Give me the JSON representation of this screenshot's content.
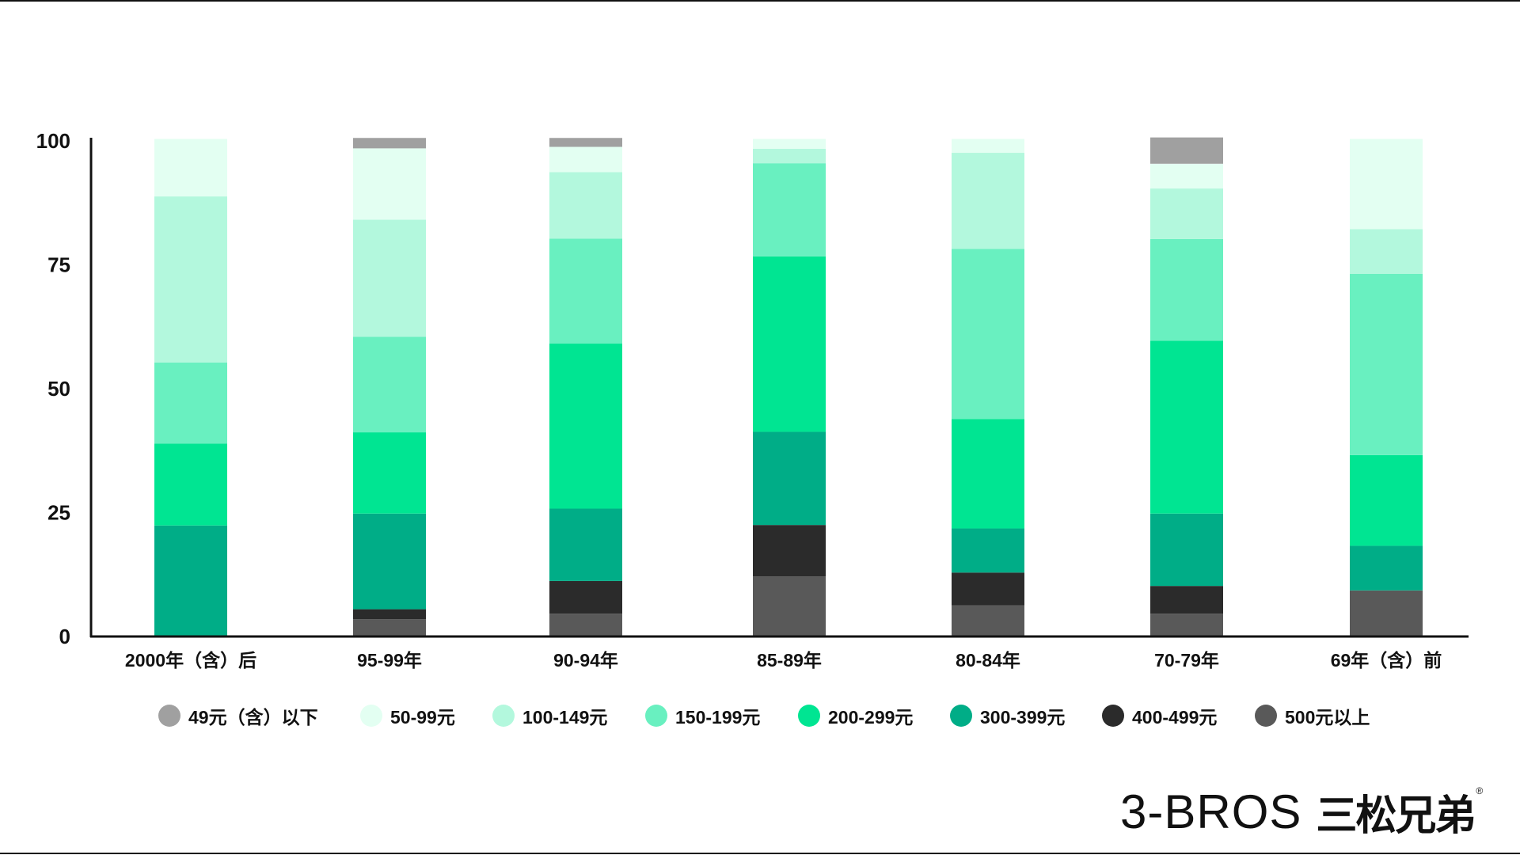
{
  "chart_data": {
    "type": "bar",
    "stacked": true,
    "categories": [
      "2000年（含）后",
      "95-99年",
      "90-94年",
      "85-89年",
      "80-84年",
      "70-79年",
      "69年（含）前"
    ],
    "ylim": [
      0,
      100
    ],
    "yticks": [
      "0",
      "25",
      "50",
      "75",
      "100"
    ],
    "legend_position": "bottom",
    "grid": false,
    "series": [
      {
        "name": "500元以上",
        "color": "#595959",
        "values": [
          0,
          3.5,
          4.6,
          12.1,
          6.3,
          4.6,
          9.3
        ]
      },
      {
        "name": "400-499元",
        "color": "#2b2b2b",
        "values": [
          0,
          2.0,
          6.6,
          10.4,
          6.6,
          5.6,
          0
        ]
      },
      {
        "name": "300-399元",
        "color": "#00ad87",
        "values": [
          22.4,
          19.3,
          14.6,
          18.8,
          8.9,
          14.6,
          9.0
        ]
      },
      {
        "name": "200-299元",
        "color": "#00e592",
        "values": [
          16.5,
          16.4,
          33.3,
          35.4,
          22.1,
          34.9,
          18.3
        ]
      },
      {
        "name": "150-199元",
        "color": "#69f0c0",
        "values": [
          16.4,
          19.3,
          21.2,
          18.8,
          34.3,
          20.5,
          36.6
        ]
      },
      {
        "name": "100-149元",
        "color": "#b3f8dd",
        "values": [
          33.5,
          23.6,
          13.4,
          2.9,
          19.4,
          10.2,
          9.0
        ]
      },
      {
        "name": "50-99元",
        "color": "#e3fff2",
        "values": [
          11.6,
          14.4,
          5.1,
          2.0,
          2.8,
          5.0,
          18.2
        ]
      },
      {
        "name": "49元（含）以下",
        "color": "#a0a0a0",
        "values": [
          0,
          2.1,
          1.8,
          0,
          0,
          5.3,
          0
        ]
      }
    ]
  },
  "legend": [
    {
      "label": "49元（含）以下",
      "color": "#a0a0a0"
    },
    {
      "label": "50-99元",
      "color": "#e3fff2"
    },
    {
      "label": "100-149元",
      "color": "#b3f8dd"
    },
    {
      "label": "150-199元",
      "color": "#69f0c0"
    },
    {
      "label": "200-299元",
      "color": "#00e592"
    },
    {
      "label": "300-399元",
      "color": "#00ad87"
    },
    {
      "label": "400-499元",
      "color": "#2b2b2b"
    },
    {
      "label": "500元以上",
      "color": "#595959"
    }
  ],
  "brand": {
    "latin": "3-BROS",
    "chinese": "三松兄弟",
    "registered": "®"
  }
}
